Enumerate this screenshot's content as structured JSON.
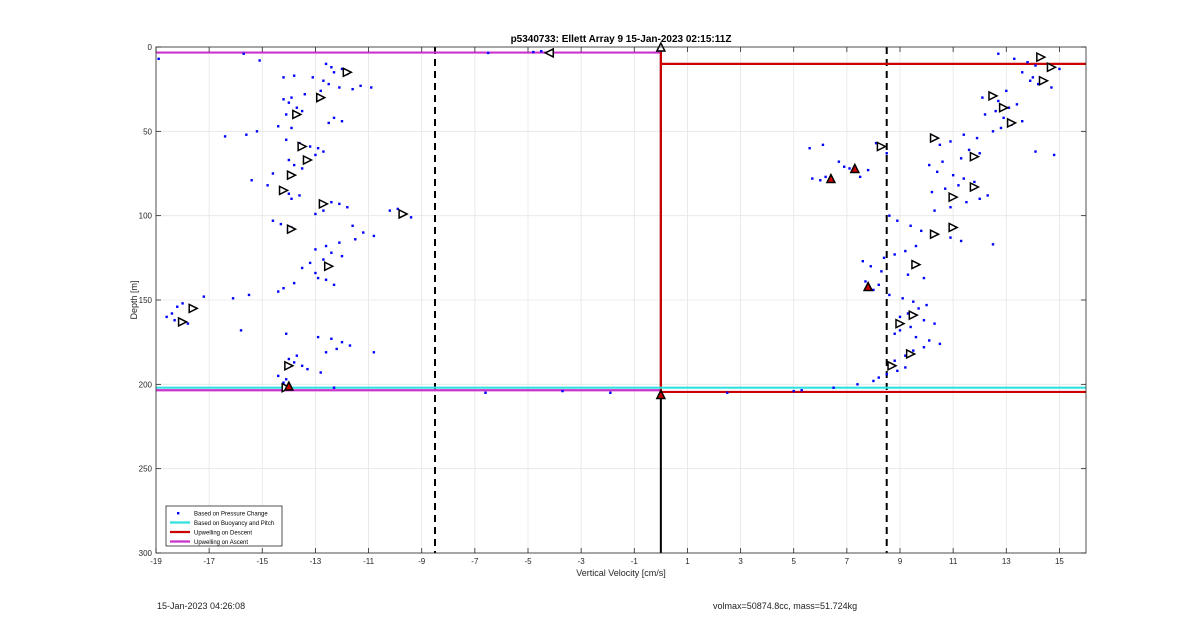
{
  "chart_data": {
    "type": "scatter",
    "title": "p5340733: Ellett Array 9 15-Jan-2023 02:15:11Z",
    "xlabel": "Vertical Velocity [cm/s]",
    "ylabel": "Depth [m]",
    "xlim": [
      -19,
      16
    ],
    "ylim": [
      0,
      300
    ],
    "y_reversed": true,
    "grid": true,
    "xticks": [
      -19,
      -17,
      -15,
      -13,
      -11,
      -9,
      -7,
      -5,
      -3,
      -1,
      1,
      3,
      5,
      7,
      9,
      11,
      13,
      15
    ],
    "yticks": [
      0,
      50,
      100,
      150,
      200,
      250,
      300
    ],
    "vertical_lines": [
      {
        "x": -8.5,
        "style": "dashed",
        "color": "#000000"
      },
      {
        "x": 0,
        "style": "solid",
        "color": "#000000"
      },
      {
        "x": 8.5,
        "style": "dashed",
        "color": "#000000"
      }
    ],
    "legend": {
      "position": "bottom-left",
      "entries": [
        {
          "label": "Based on Pressure Change",
          "color": "#0000ff",
          "marker": "dot"
        },
        {
          "label": "Based on Buoyancy and Pitch",
          "color": "#33e0e0",
          "marker": "line"
        },
        {
          "label": "Upwelling on Descent",
          "color": "#cc0000",
          "marker": "line"
        },
        {
          "label": "Upwelling on Ascent",
          "color": "#cc33cc",
          "marker": "line"
        }
      ]
    },
    "series": [
      {
        "name": "Upwelling on Ascent",
        "color": "#cc33cc",
        "kind": "line",
        "segments": [
          [
            [
              -19,
              3.3
            ],
            [
              0,
              3.3
            ]
          ],
          [
            [
              -19,
              203.5
            ],
            [
              0,
              203.5
            ]
          ]
        ]
      },
      {
        "name": "Upwelling on Descent",
        "color": "#cc0000",
        "kind": "line",
        "segments": [
          [
            [
              0,
              10
            ],
            [
              16,
              10
            ]
          ],
          [
            [
              0,
              204.5
            ],
            [
              16,
              204.5
            ]
          ],
          [
            [
              0,
              3
            ],
            [
              0,
              206
            ]
          ]
        ]
      },
      {
        "name": "Based on Buoyancy and Pitch",
        "color": "#33e0e0",
        "kind": "line",
        "segments": [
          [
            [
              -19,
              202
            ],
            [
              16,
              202
            ]
          ]
        ]
      },
      {
        "name": "Based on Pressure Change",
        "color": "#0000ff",
        "kind": "dot",
        "points": [
          [
            -18.9,
            7
          ],
          [
            -15.7,
            4
          ],
          [
            -15.1,
            8
          ],
          [
            -6.5,
            3.5
          ],
          [
            -4.8,
            3
          ],
          [
            -4.5,
            2.5
          ],
          [
            -4.2,
            3
          ],
          [
            -14.2,
            18
          ],
          [
            -13.8,
            17
          ],
          [
            -13.1,
            18
          ],
          [
            -12.6,
            10
          ],
          [
            -12.4,
            12
          ],
          [
            -12.3,
            15
          ],
          [
            -12.0,
            13
          ],
          [
            -11.8,
            16
          ],
          [
            -12.7,
            20
          ],
          [
            -12.5,
            22
          ],
          [
            -12.1,
            24
          ],
          [
            -11.6,
            25
          ],
          [
            -11.3,
            23
          ],
          [
            -10.9,
            24
          ],
          [
            -12.8,
            26
          ],
          [
            -13.4,
            28
          ],
          [
            -13.9,
            30
          ],
          [
            -14.2,
            31
          ],
          [
            -14.0,
            33
          ],
          [
            -13.7,
            36
          ],
          [
            -13.5,
            38
          ],
          [
            -14.1,
            40
          ],
          [
            -12.3,
            42
          ],
          [
            -12.0,
            44
          ],
          [
            -12.5,
            45
          ],
          [
            -14.4,
            47
          ],
          [
            -13.9,
            48
          ],
          [
            -15.2,
            50
          ],
          [
            -15.6,
            52
          ],
          [
            -16.4,
            53
          ],
          [
            -14.1,
            55
          ],
          [
            -13.6,
            57
          ],
          [
            -13.2,
            59
          ],
          [
            -12.9,
            60
          ],
          [
            -12.7,
            62
          ],
          [
            -13.0,
            64
          ],
          [
            -13.4,
            66
          ],
          [
            -14.0,
            67
          ],
          [
            -13.8,
            70
          ],
          [
            -13.5,
            72
          ],
          [
            -14.6,
            75
          ],
          [
            -15.4,
            79
          ],
          [
            -14.8,
            82
          ],
          [
            -14.3,
            84
          ],
          [
            -14.0,
            87
          ],
          [
            -13.6,
            88
          ],
          [
            -13.9,
            90
          ],
          [
            -12.4,
            92
          ],
          [
            -12.1,
            93
          ],
          [
            -11.8,
            95
          ],
          [
            -12.7,
            97
          ],
          [
            -13.0,
            99
          ],
          [
            -9.9,
            96
          ],
          [
            -10.2,
            97
          ],
          [
            -9.7,
            99
          ],
          [
            -9.4,
            101
          ],
          [
            -14.6,
            103
          ],
          [
            -14.3,
            105
          ],
          [
            -13.9,
            107
          ],
          [
            -11.6,
            106
          ],
          [
            -11.2,
            110
          ],
          [
            -10.8,
            112
          ],
          [
            -11.5,
            114
          ],
          [
            -12.1,
            116
          ],
          [
            -12.6,
            118
          ],
          [
            -13.0,
            120
          ],
          [
            -12.4,
            122
          ],
          [
            -12.0,
            124
          ],
          [
            -12.7,
            126
          ],
          [
            -13.2,
            128
          ],
          [
            -13.5,
            131
          ],
          [
            -13.0,
            134
          ],
          [
            -12.6,
            138
          ],
          [
            -12.3,
            141
          ],
          [
            -12.9,
            137
          ],
          [
            -13.8,
            140
          ],
          [
            -14.2,
            143
          ],
          [
            -14.4,
            145
          ],
          [
            -17.2,
            148
          ],
          [
            -15.5,
            147
          ],
          [
            -16.1,
            149
          ],
          [
            -18.0,
            152
          ],
          [
            -18.2,
            154
          ],
          [
            -17.6,
            155
          ],
          [
            -18.4,
            158
          ],
          [
            -18.6,
            160
          ],
          [
            -18.3,
            162
          ],
          [
            -17.8,
            164
          ],
          [
            -15.8,
            168
          ],
          [
            -14.1,
            170
          ],
          [
            -12.9,
            172
          ],
          [
            -12.4,
            173
          ],
          [
            -12.0,
            175
          ],
          [
            -11.7,
            177
          ],
          [
            -12.2,
            179
          ],
          [
            -12.6,
            181
          ],
          [
            -10.8,
            181
          ],
          [
            -13.7,
            183
          ],
          [
            -14.0,
            185
          ],
          [
            -13.8,
            187
          ],
          [
            -13.5,
            189
          ],
          [
            -13.3,
            191
          ],
          [
            -12.8,
            193
          ],
          [
            -14.4,
            195
          ],
          [
            -14.1,
            197
          ],
          [
            -14.2,
            199
          ],
          [
            -12.3,
            202
          ],
          [
            -6.6,
            205
          ],
          [
            -3.7,
            204
          ],
          [
            -1.9,
            205
          ],
          [
            12.7,
            4
          ],
          [
            13.3,
            7
          ],
          [
            13.8,
            9
          ],
          [
            14.1,
            11
          ],
          [
            14.6,
            13
          ],
          [
            15.0,
            13
          ],
          [
            13.6,
            15
          ],
          [
            14.0,
            18
          ],
          [
            13.9,
            20
          ],
          [
            14.2,
            22
          ],
          [
            14.7,
            24
          ],
          [
            13.0,
            26
          ],
          [
            12.4,
            28
          ],
          [
            12.1,
            30
          ],
          [
            12.7,
            32
          ],
          [
            13.4,
            34
          ],
          [
            13.1,
            36
          ],
          [
            12.6,
            38
          ],
          [
            12.2,
            40
          ],
          [
            12.9,
            42
          ],
          [
            13.6,
            44
          ],
          [
            13.2,
            46
          ],
          [
            12.8,
            48
          ],
          [
            12.5,
            50
          ],
          [
            11.4,
            52
          ],
          [
            11.9,
            54
          ],
          [
            10.9,
            56
          ],
          [
            10.5,
            58
          ],
          [
            11.6,
            61
          ],
          [
            12.0,
            63
          ],
          [
            14.1,
            62
          ],
          [
            14.8,
            64
          ],
          [
            11.3,
            66
          ],
          [
            10.6,
            68
          ],
          [
            10.1,
            70
          ],
          [
            10.4,
            74
          ],
          [
            11.0,
            76
          ],
          [
            11.4,
            78
          ],
          [
            11.8,
            80
          ],
          [
            11.2,
            82
          ],
          [
            10.7,
            84
          ],
          [
            10.2,
            86
          ],
          [
            12.3,
            88
          ],
          [
            12.0,
            90
          ],
          [
            11.5,
            92
          ],
          [
            10.9,
            95
          ],
          [
            10.3,
            97
          ],
          [
            8.6,
            100
          ],
          [
            8.9,
            103
          ],
          [
            9.4,
            106
          ],
          [
            9.8,
            109
          ],
          [
            10.4,
            111
          ],
          [
            10.9,
            113
          ],
          [
            11.3,
            115
          ],
          [
            12.5,
            117
          ],
          [
            9.6,
            118
          ],
          [
            9.2,
            121
          ],
          [
            8.8,
            123
          ],
          [
            8.4,
            125
          ],
          [
            7.6,
            127
          ],
          [
            7.9,
            130
          ],
          [
            8.3,
            133
          ],
          [
            9.3,
            135
          ],
          [
            9.9,
            137
          ],
          [
            7.7,
            139
          ],
          [
            8.2,
            141
          ],
          [
            8.0,
            144
          ],
          [
            8.6,
            147
          ],
          [
            9.1,
            149
          ],
          [
            9.5,
            151
          ],
          [
            10.0,
            153
          ],
          [
            9.7,
            155
          ],
          [
            9.3,
            158
          ],
          [
            9.0,
            160
          ],
          [
            9.9,
            162
          ],
          [
            10.3,
            164
          ],
          [
            9.4,
            166
          ],
          [
            9.0,
            168
          ],
          [
            8.8,
            170
          ],
          [
            9.6,
            172
          ],
          [
            10.1,
            174
          ],
          [
            10.5,
            176
          ],
          [
            9.9,
            178
          ],
          [
            9.5,
            180
          ],
          [
            9.2,
            183
          ],
          [
            8.8,
            186
          ],
          [
            8.6,
            188
          ],
          [
            9.2,
            190
          ],
          [
            8.9,
            192
          ],
          [
            8.5,
            194
          ],
          [
            8.2,
            196
          ],
          [
            8.0,
            198
          ],
          [
            7.4,
            200
          ],
          [
            6.5,
            202
          ],
          [
            5.3,
            203.5
          ],
          [
            5.0,
            204
          ],
          [
            2.5,
            205
          ],
          [
            5.6,
            60
          ],
          [
            6.1,
            58
          ],
          [
            6.7,
            68
          ],
          [
            6.9,
            71
          ],
          [
            7.1,
            72
          ],
          [
            7.3,
            74
          ],
          [
            7.8,
            73
          ],
          [
            6.2,
            77
          ],
          [
            6.0,
            79
          ],
          [
            5.7,
            78
          ],
          [
            7.5,
            77
          ],
          [
            8.1,
            57
          ],
          [
            8.5,
            63
          ]
        ]
      }
    ],
    "markers": {
      "kind": "triangle",
      "points_right": [
        [
          -11.8,
          15
        ],
        [
          -12.8,
          30
        ],
        [
          -13.7,
          40
        ],
        [
          -13.5,
          59
        ],
        [
          -13.3,
          67
        ],
        [
          -13.9,
          76
        ],
        [
          -14.2,
          85
        ],
        [
          -12.7,
          93
        ],
        [
          -9.7,
          99
        ],
        [
          -13.9,
          108
        ],
        [
          -12.5,
          130
        ],
        [
          -17.6,
          155
        ],
        [
          -18.0,
          163
        ],
        [
          -14.0,
          189
        ],
        [
          -14.1,
          202
        ],
        [
          14.3,
          6
        ],
        [
          14.7,
          12
        ],
        [
          14.4,
          20
        ],
        [
          12.5,
          29
        ],
        [
          12.9,
          36
        ],
        [
          13.2,
          45
        ],
        [
          8.3,
          59
        ],
        [
          10.3,
          54
        ],
        [
          11.8,
          65
        ],
        [
          11.8,
          83
        ],
        [
          11.0,
          89
        ],
        [
          11.0,
          107
        ],
        [
          10.3,
          111
        ],
        [
          9.6,
          129
        ],
        [
          9.5,
          159
        ],
        [
          9.0,
          164
        ],
        [
          9.4,
          182
        ],
        [
          8.7,
          189
        ]
      ],
      "points_left": [
        [
          -4.2,
          3.5
        ]
      ],
      "points_up": [
        [
          0,
          0
        ]
      ],
      "filled_red": [
        [
          0,
          206
        ],
        [
          -14.0,
          201
        ],
        [
          6.4,
          78
        ],
        [
          7.3,
          72
        ],
        [
          7.8,
          142
        ]
      ]
    }
  },
  "footer": {
    "left": "15-Jan-2023 04:26:08",
    "right": "volmax=50874.8cc, mass=51.724kg"
  }
}
